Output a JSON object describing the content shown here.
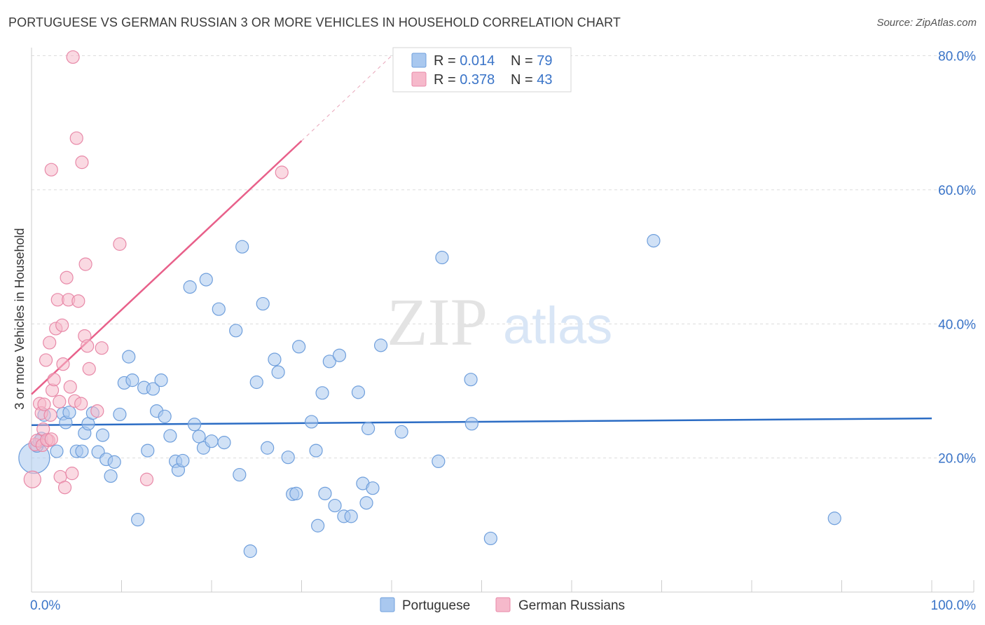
{
  "header": {
    "title": "PORTUGUESE VS GERMAN RUSSIAN 3 OR MORE VEHICLES IN HOUSEHOLD CORRELATION CHART",
    "source": "Source: ZipAtlas.com"
  },
  "watermark": {
    "zip": "ZIP",
    "atlas": "atlas"
  },
  "colors": {
    "blue_fill": "#a9c8ef",
    "blue_stroke": "#6f9fdc",
    "blue_line": "#2b6cc4",
    "pink_fill": "#f6b9cb",
    "pink_stroke": "#e889a8",
    "pink_line": "#e8608a",
    "tick_text": "#3a74c8",
    "grid": "#dcdcdc"
  },
  "legend": {
    "rows": [
      {
        "r_label": "R = ",
        "r_value": "0.014",
        "n_label": "N = ",
        "n_value": "79"
      },
      {
        "r_label": "R = ",
        "r_value": "0.378",
        "n_label": "N = ",
        "n_value": "43"
      }
    ]
  },
  "bottom_legend": [
    "Portuguese",
    "German Russians"
  ],
  "chart_data": {
    "type": "scatter",
    "title": "PORTUGUESE VS GERMAN RUSSIAN 3 OR MORE VEHICLES IN HOUSEHOLD CORRELATION CHART",
    "xlabel": "",
    "ylabel": "3 or more Vehicles in Household",
    "xlim": [
      0,
      100
    ],
    "ylim": [
      0,
      80
    ],
    "x_tick_labels": [
      "0.0%",
      "100.0%"
    ],
    "y_ticks": [
      20,
      40,
      60,
      80
    ],
    "y_tick_labels": [
      "20.0%",
      "40.0%",
      "60.0%",
      "80.0%"
    ],
    "x_minor_ticks": [
      0,
      10,
      20,
      30,
      40,
      50,
      60,
      70,
      80,
      90,
      100
    ],
    "grid": true,
    "legend_position": "top-center",
    "series": [
      {
        "name": "Portuguese",
        "R": 0.014,
        "N": 79,
        "trend": {
          "x": [
            0,
            100
          ],
          "y": [
            24.9,
            25.9
          ],
          "style": "solid"
        },
        "points": [
          [
            0.3,
            20.0,
            22
          ],
          [
            0.6,
            21.8,
            9
          ],
          [
            0.9,
            22.5,
            9
          ],
          [
            1.1,
            22.9,
            9
          ],
          [
            1.4,
            26.4,
            9
          ],
          [
            2.8,
            21.0,
            9
          ],
          [
            3.5,
            26.6,
            9
          ],
          [
            3.8,
            25.3,
            9
          ],
          [
            4.2,
            26.8,
            9
          ],
          [
            5.0,
            21.0,
            9
          ],
          [
            5.6,
            21.0,
            9
          ],
          [
            5.9,
            23.7,
            9
          ],
          [
            6.3,
            25.1,
            9
          ],
          [
            6.8,
            26.7,
            9
          ],
          [
            7.4,
            20.9,
            9
          ],
          [
            7.9,
            23.4,
            9
          ],
          [
            8.3,
            19.8,
            9
          ],
          [
            8.8,
            17.3,
            9
          ],
          [
            9.2,
            19.4,
            9
          ],
          [
            9.8,
            26.5,
            9
          ],
          [
            10.3,
            31.2,
            9
          ],
          [
            10.8,
            35.1,
            9
          ],
          [
            11.2,
            31.6,
            9
          ],
          [
            11.8,
            10.8,
            9
          ],
          [
            12.5,
            30.5,
            9
          ],
          [
            12.9,
            21.1,
            9
          ],
          [
            13.5,
            30.3,
            9
          ],
          [
            13.9,
            27.0,
            9
          ],
          [
            14.4,
            31.6,
            9
          ],
          [
            14.8,
            26.2,
            9
          ],
          [
            15.4,
            23.3,
            9
          ],
          [
            16.0,
            19.5,
            9
          ],
          [
            16.3,
            18.2,
            9
          ],
          [
            16.8,
            19.6,
            9
          ],
          [
            17.6,
            45.5,
            9
          ],
          [
            18.1,
            25.0,
            9
          ],
          [
            18.6,
            23.2,
            9
          ],
          [
            19.1,
            21.5,
            9
          ],
          [
            19.4,
            46.6,
            9
          ],
          [
            20.0,
            22.5,
            9
          ],
          [
            20.8,
            42.2,
            9
          ],
          [
            21.4,
            22.3,
            9
          ],
          [
            22.7,
            39.0,
            9
          ],
          [
            23.1,
            17.5,
            9
          ],
          [
            23.4,
            51.5,
            9
          ],
          [
            24.3,
            6.1,
            9
          ],
          [
            25.0,
            31.3,
            9
          ],
          [
            25.7,
            43.0,
            9
          ],
          [
            26.2,
            21.5,
            9
          ],
          [
            27.0,
            34.7,
            9
          ],
          [
            27.4,
            32.8,
            9
          ],
          [
            28.5,
            20.1,
            9
          ],
          [
            29.0,
            14.6,
            9
          ],
          [
            29.4,
            14.7,
            9
          ],
          [
            29.7,
            36.6,
            9
          ],
          [
            31.1,
            25.4,
            9
          ],
          [
            31.6,
            21.1,
            9
          ],
          [
            31.8,
            9.9,
            9
          ],
          [
            32.3,
            29.7,
            9
          ],
          [
            32.6,
            14.7,
            9
          ],
          [
            33.1,
            34.4,
            9
          ],
          [
            33.7,
            12.9,
            9
          ],
          [
            34.2,
            35.3,
            9
          ],
          [
            34.7,
            11.3,
            9
          ],
          [
            35.5,
            11.3,
            9
          ],
          [
            36.3,
            29.8,
            9
          ],
          [
            36.8,
            16.2,
            9
          ],
          [
            37.2,
            13.3,
            9
          ],
          [
            37.4,
            24.4,
            9
          ],
          [
            37.9,
            15.5,
            9
          ],
          [
            38.8,
            36.8,
            9
          ],
          [
            41.1,
            23.9,
            9
          ],
          [
            45.2,
            19.5,
            9
          ],
          [
            45.6,
            49.9,
            9
          ],
          [
            48.8,
            31.7,
            9
          ],
          [
            48.9,
            25.1,
            9
          ],
          [
            51.0,
            8.0,
            9
          ],
          [
            69.1,
            52.4,
            9
          ],
          [
            89.2,
            11.0,
            9
          ]
        ]
      },
      {
        "name": "German Russians",
        "R": 0.378,
        "N": 43,
        "trend": {
          "x": [
            0,
            30
          ],
          "y": [
            29.5,
            67.3
          ],
          "style": "solid",
          "dashed_extension": {
            "x": [
              30,
              40
            ],
            "y": [
              67.3,
              80.0
            ]
          }
        },
        "points": [
          [
            0.1,
            16.8,
            12
          ],
          [
            0.4,
            22.0,
            9
          ],
          [
            0.6,
            22.6,
            9
          ],
          [
            0.9,
            28.1,
            9
          ],
          [
            1.1,
            26.7,
            9
          ],
          [
            1.3,
            24.3,
            9
          ],
          [
            1.4,
            28.0,
            9
          ],
          [
            1.6,
            34.6,
            9
          ],
          [
            1.9,
            22.6,
            9
          ],
          [
            2.0,
            37.2,
            9
          ],
          [
            2.1,
            26.4,
            9
          ],
          [
            2.2,
            63.0,
            9
          ],
          [
            2.3,
            30.1,
            9
          ],
          [
            2.5,
            31.7,
            9
          ],
          [
            2.7,
            39.3,
            9
          ],
          [
            2.9,
            43.6,
            9
          ],
          [
            3.1,
            28.4,
            9
          ],
          [
            3.2,
            17.2,
            9
          ],
          [
            3.4,
            39.8,
            9
          ],
          [
            3.5,
            34.0,
            9
          ],
          [
            3.7,
            15.6,
            9
          ],
          [
            3.9,
            46.9,
            9
          ],
          [
            4.1,
            43.6,
            9
          ],
          [
            4.3,
            30.6,
            9
          ],
          [
            4.5,
            17.7,
            9
          ],
          [
            4.6,
            79.8,
            9
          ],
          [
            4.8,
            28.5,
            9
          ],
          [
            5.0,
            67.7,
            9
          ],
          [
            5.2,
            43.4,
            9
          ],
          [
            5.5,
            28.1,
            9
          ],
          [
            5.6,
            64.1,
            9
          ],
          [
            5.9,
            38.2,
            9
          ],
          [
            6.0,
            48.9,
            9
          ],
          [
            6.2,
            36.7,
            9
          ],
          [
            6.4,
            33.3,
            9
          ],
          [
            7.3,
            27.0,
            9
          ],
          [
            7.8,
            36.4,
            9
          ],
          [
            9.8,
            51.9,
            9
          ],
          [
            12.8,
            16.8,
            9
          ],
          [
            1.2,
            21.9,
            9
          ],
          [
            1.7,
            22.7,
            9
          ],
          [
            2.2,
            22.8,
            9
          ],
          [
            27.8,
            62.6,
            9
          ]
        ]
      }
    ]
  }
}
